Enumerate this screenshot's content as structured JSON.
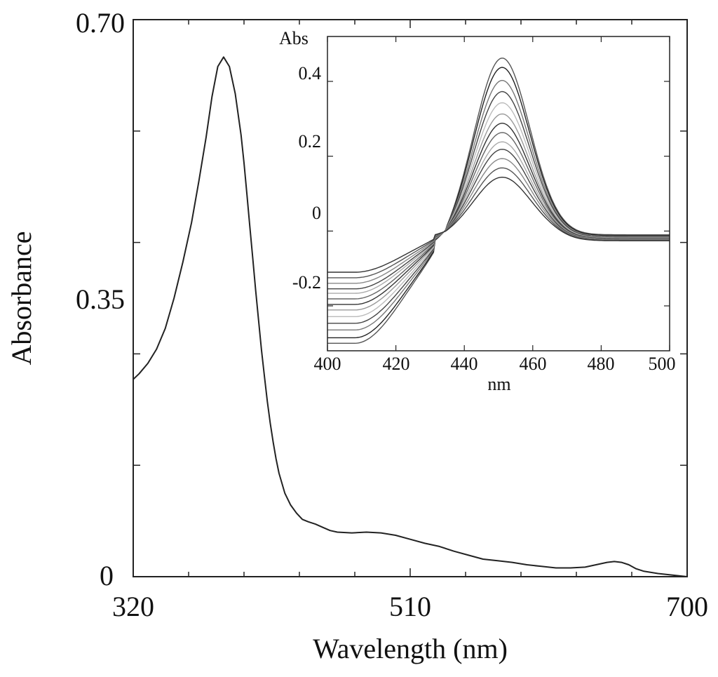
{
  "chart_data": [
    {
      "type": "line",
      "title": "",
      "xlabel": "Wavelength (nm)",
      "ylabel": "Absorbance",
      "xlim": [
        320,
        700
      ],
      "ylim": [
        0,
        0.7
      ],
      "grid": false,
      "xticks": [
        320,
        510,
        700
      ],
      "xtick_labels": [
        "320",
        "510",
        "700"
      ],
      "yticks": [
        0,
        0.35,
        0.7
      ],
      "ytick_labels": [
        "0",
        "0.35",
        "0.70"
      ],
      "line_color": "#222222",
      "series": [
        {
          "x": [
            320,
            324,
            330,
            336,
            342,
            348,
            354,
            360,
            365,
            370,
            374,
            378,
            382,
            386,
            390,
            394,
            396,
            398,
            400,
            402,
            404,
            406,
            408,
            410,
            412,
            414,
            416,
            418,
            420,
            424,
            428,
            432,
            436,
            440,
            445,
            450,
            455,
            460,
            470,
            480,
            490,
            500,
            510,
            520,
            530,
            540,
            550,
            560,
            570,
            580,
            590,
            600,
            610,
            620,
            630,
            640,
            645,
            650,
            655,
            660,
            665,
            670,
            680,
            690,
            700
          ],
          "y": [
            0.248,
            0.255,
            0.268,
            0.286,
            0.312,
            0.35,
            0.395,
            0.445,
            0.497,
            0.552,
            0.603,
            0.641,
            0.653,
            0.641,
            0.607,
            0.555,
            0.52,
            0.48,
            0.44,
            0.4,
            0.36,
            0.322,
            0.285,
            0.252,
            0.22,
            0.193,
            0.169,
            0.148,
            0.13,
            0.105,
            0.09,
            0.08,
            0.072,
            0.069,
            0.066,
            0.062,
            0.058,
            0.056,
            0.055,
            0.056,
            0.055,
            0.052,
            0.047,
            0.042,
            0.038,
            0.032,
            0.027,
            0.022,
            0.02,
            0.018,
            0.015,
            0.013,
            0.011,
            0.011,
            0.012,
            0.016,
            0.018,
            0.019,
            0.018,
            0.015,
            0.01,
            0.007,
            0.004,
            0.002,
            0.0
          ]
        }
      ]
    },
    {
      "type": "line",
      "title": "",
      "xlabel": "nm",
      "ylabel": "Abs",
      "xlim": [
        400,
        500
      ],
      "ylim": [
        -0.32,
        0.52
      ],
      "grid": false,
      "xticks": [
        400,
        420,
        440,
        460,
        480,
        500
      ],
      "xtick_labels": [
        "400",
        "420",
        "440",
        "460",
        "480",
        "500"
      ],
      "yticks": [
        -0.2,
        0,
        0.2,
        0.4
      ],
      "ytick_labels": [
        "-0.2",
        "0",
        "0.2",
        "0.4"
      ],
      "peak_x": 451,
      "peak_width": 8,
      "dip_x": 408,
      "dip_width": 14,
      "isosbestic_x": 433,
      "series": [
        {
          "peak": 0.465,
          "tail": -0.01,
          "color": "#555555"
        },
        {
          "peak": 0.44,
          "tail": -0.012,
          "color": "#222222"
        },
        {
          "peak": 0.405,
          "tail": -0.015,
          "color": "#777777"
        },
        {
          "peak": 0.375,
          "tail": -0.016,
          "color": "#444444"
        },
        {
          "peak": 0.345,
          "tail": -0.018,
          "color": "#bbbbbb"
        },
        {
          "peak": 0.315,
          "tail": -0.019,
          "color": "#999999"
        },
        {
          "peak": 0.29,
          "tail": -0.02,
          "color": "#333333"
        },
        {
          "peak": 0.265,
          "tail": -0.021,
          "color": "#666666"
        },
        {
          "peak": 0.24,
          "tail": -0.022,
          "color": "#aaaaaa"
        },
        {
          "peak": 0.22,
          "tail": -0.023,
          "color": "#444444"
        },
        {
          "peak": 0.195,
          "tail": -0.024,
          "color": "#888888"
        },
        {
          "peak": 0.17,
          "tail": -0.025,
          "color": "#555555"
        },
        {
          "peak": 0.145,
          "tail": -0.026,
          "color": "#333333"
        }
      ]
    }
  ]
}
